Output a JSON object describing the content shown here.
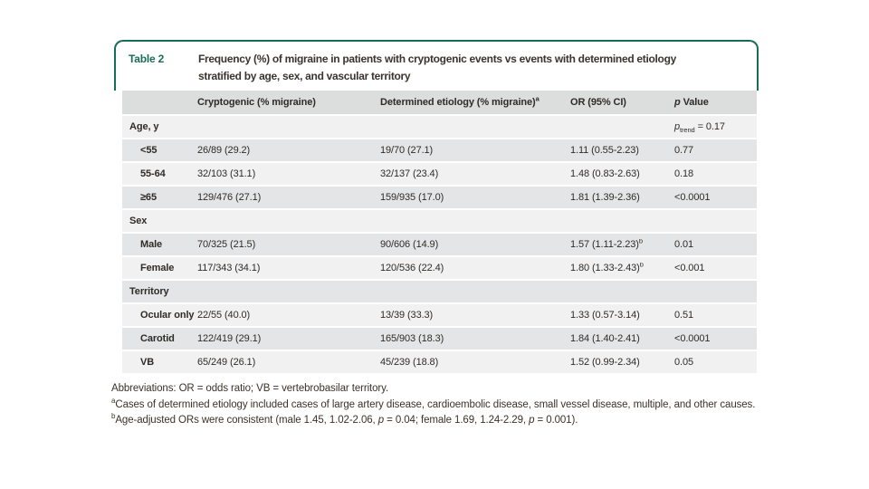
{
  "figure": {
    "label": "Table 2",
    "title_line1": "Frequency (%) of migraine in patients with cryptogenic events vs events with determined etiology",
    "title_line2": "stratified by age, sex, and vascular territory"
  },
  "colors": {
    "accent_green": "#176d57",
    "header_row_bg": "#dcdddd",
    "row_light_bg": "#f1f1f2",
    "row_dark_bg": "#e4e5e6"
  },
  "table": {
    "header": {
      "cryptogenic": "Cryptogenic (% migraine)",
      "determined": "Determined etiology (% migraine)",
      "determined_sup": "a",
      "or": "OR (95% CI)",
      "p_var": "p",
      "p_rest": " Value"
    },
    "rows": [
      {
        "label": "Age, y",
        "p_var": "p",
        "p_sub": "trend",
        "p_rest": " = 0.17"
      },
      {
        "label": "<55",
        "cryptogenic": "26/89 (29.2)",
        "determined": "19/70 (27.1)",
        "or": "1.11 (0.55-2.23)",
        "p": "0.77"
      },
      {
        "label": "55-64",
        "cryptogenic": "32/103 (31.1)",
        "determined": "32/137 (23.4)",
        "or": "1.48 (0.83-2.63)",
        "p": "0.18"
      },
      {
        "label": "≥65",
        "cryptogenic": "129/476 (27.1)",
        "determined": "159/935 (17.0)",
        "or": "1.81 (1.39-2.36)",
        "p": "<0.0001"
      },
      {
        "label": "Sex"
      },
      {
        "label": "Male",
        "cryptogenic": "70/325 (21.5)",
        "determined": "90/606 (14.9)",
        "or": "1.57 (1.11-2.23)",
        "or_sup": "b",
        "p": "0.01"
      },
      {
        "label": "Female",
        "cryptogenic": "117/343 (34.1)",
        "determined": "120/536 (22.4)",
        "or": "1.80 (1.33-2.43)",
        "or_sup": "b",
        "p": "<0.001"
      },
      {
        "label": "Territory"
      },
      {
        "label": "Ocular only",
        "cryptogenic": "22/55 (40.0)",
        "determined": "13/39 (33.3)",
        "or": "1.33 (0.57-3.14)",
        "p": "0.51"
      },
      {
        "label": "Carotid",
        "cryptogenic": "122/419 (29.1)",
        "determined": "165/903 (18.3)",
        "or": "1.84 (1.40-2.41)",
        "p": "<0.0001"
      },
      {
        "label": "VB",
        "cryptogenic": "65/249 (26.1)",
        "determined": "45/239 (18.8)",
        "or": "1.52 (0.99-2.34)",
        "p": "0.05"
      }
    ]
  },
  "footnotes": {
    "abbreviations": "Abbreviations: OR = odds ratio; VB = vertebrobasilar territory.",
    "a_sup": "a",
    "a_text": "Cases of determined etiology included cases of large artery disease, cardioembolic disease, small vessel disease, multiple, and other causes.",
    "b_sup": "b",
    "b_t1": "Age-adjusted ORs were consistent (male 1.45, 1.02-2.06, ",
    "b_p1": "p",
    "b_t2": " = 0.04; female 1.69, 1.24-2.29, ",
    "b_p2": "p",
    "b_t3": " = 0.001)."
  }
}
